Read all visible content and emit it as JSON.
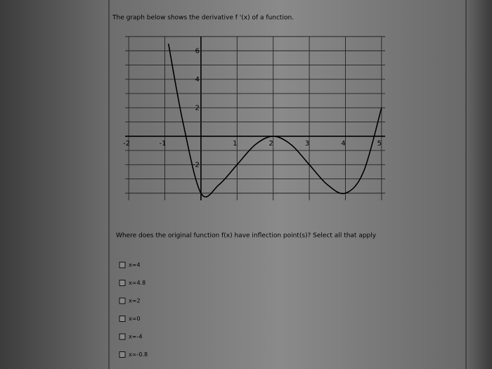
{
  "header": {
    "title": "The graph below shows the derivative f '(x) of a function."
  },
  "chart_data": {
    "type": "line",
    "x": [
      -0.9,
      -0.5,
      0,
      0.5,
      1,
      1.5,
      2,
      2.5,
      3,
      3.5,
      4,
      4.5,
      5
    ],
    "values": [
      6.5,
      1,
      -4,
      -3.4,
      -2,
      -0.6,
      0,
      -0.6,
      -2,
      -3.4,
      -4,
      -2.5,
      2
    ],
    "color": "#000000",
    "xlim": [
      -2.1,
      5.1
    ],
    "ylim": [
      -4.5,
      7
    ],
    "xticks": [
      -2,
      -1,
      1,
      2,
      3,
      4,
      5
    ],
    "yticks": [
      -2,
      2,
      4,
      6
    ],
    "xgrid": [
      -2,
      -1,
      0,
      1,
      2,
      3,
      4,
      5
    ],
    "ygrid": [
      -4,
      -3,
      -2,
      -1,
      0,
      1,
      2,
      3,
      4,
      5,
      6,
      7
    ],
    "grid": true
  },
  "question": {
    "text": "Where does the original function f(x) have inflection point(s)? Select all that apply",
    "options": [
      "x=4",
      "x=4.8",
      "x=2",
      "x=0",
      "x=-4",
      "x=-0.8"
    ]
  }
}
